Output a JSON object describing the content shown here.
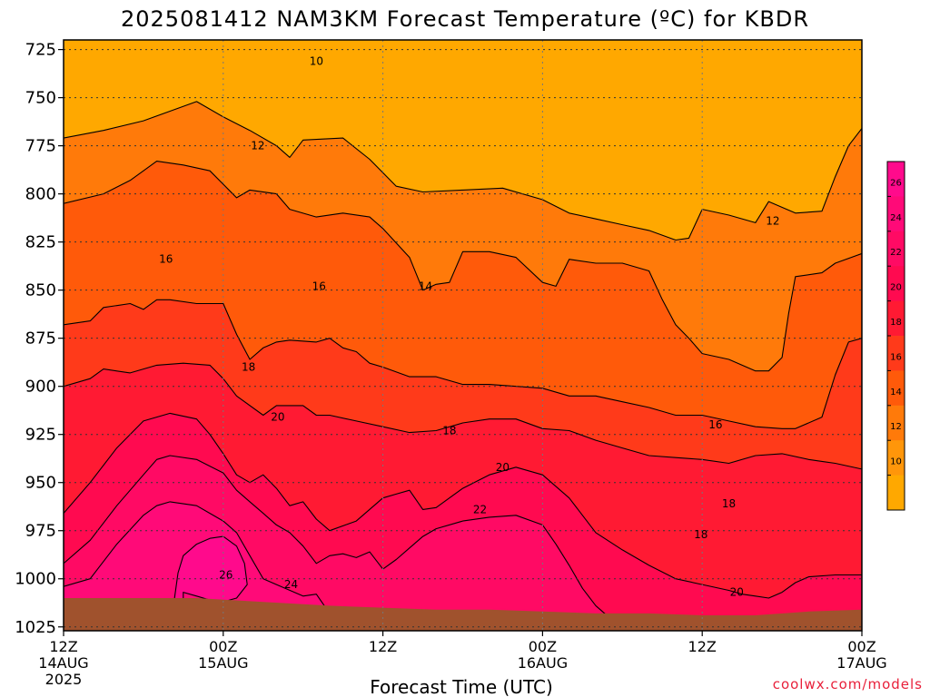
{
  "chart_data": {
    "type": "contour",
    "title": "2025081412 NAM3KM Forecast Temperature (ºC) for KBDR",
    "xlabel": "Forecast Time (UTC)",
    "ylabel": "",
    "credit": "coolwx.com/models",
    "x_ticks": [
      {
        "hour": 0,
        "line1": "12Z",
        "line2": "14AUG",
        "line3": "2025"
      },
      {
        "hour": 12,
        "line1": "00Z",
        "line2": "15AUG",
        "line3": ""
      },
      {
        "hour": 24,
        "line1": "12Z",
        "line2": "",
        "line3": ""
      },
      {
        "hour": 36,
        "line1": "00Z",
        "line2": "16AUG",
        "line3": ""
      },
      {
        "hour": 48,
        "line1": "12Z",
        "line2": "",
        "line3": ""
      },
      {
        "hour": 60,
        "line1": "00Z",
        "line2": "17AUG",
        "line3": ""
      }
    ],
    "xlim": [
      0,
      60
    ],
    "y_ticks": [
      "725",
      "750",
      "775",
      "800",
      "825",
      "850",
      "875",
      "900",
      "925",
      "950",
      "975",
      "1000",
      "1025"
    ],
    "ylim": [
      720,
      1027
    ],
    "y_inverted": true,
    "grid": true,
    "colorbar": {
      "ticks": [
        "26",
        "24",
        "22",
        "20",
        "18",
        "16",
        "14",
        "12",
        "10"
      ],
      "colors": [
        "#ff0a8c",
        "#ff0a78",
        "#ff0a64",
        "#ff0a50",
        "#ff1a33",
        "#ff3a1a",
        "#ff5a0a",
        "#ff7a0a",
        "#ff960a",
        "#ffa800"
      ]
    },
    "contour_labels": [
      {
        "hour": 19.0,
        "pressure": 731,
        "text": "10"
      },
      {
        "hour": 14.6,
        "pressure": 775,
        "text": "12"
      },
      {
        "hour": 53.3,
        "pressure": 814,
        "text": "12"
      },
      {
        "hour": 7.7,
        "pressure": 834,
        "text": "16"
      },
      {
        "hour": 19.2,
        "pressure": 848,
        "text": "16"
      },
      {
        "hour": 27.2,
        "pressure": 848,
        "text": "14"
      },
      {
        "hour": 13.9,
        "pressure": 890,
        "text": "18"
      },
      {
        "hour": 16.1,
        "pressure": 916,
        "text": "20"
      },
      {
        "hour": 29.0,
        "pressure": 923,
        "text": "18"
      },
      {
        "hour": 49.0,
        "pressure": 920,
        "text": "16"
      },
      {
        "hour": 33.0,
        "pressure": 942,
        "text": "20"
      },
      {
        "hour": 31.3,
        "pressure": 964,
        "text": "22"
      },
      {
        "hour": 50.0,
        "pressure": 961,
        "text": "18"
      },
      {
        "hour": 47.9,
        "pressure": 977,
        "text": "18"
      },
      {
        "hour": 12.2,
        "pressure": 998,
        "text": "26"
      },
      {
        "hour": 17.1,
        "pressure": 1003,
        "text": "24"
      },
      {
        "hour": 50.6,
        "pressure": 1007,
        "text": "20"
      }
    ],
    "bands": [
      {
        "level": "12",
        "color": "#ff7a0a",
        "upper": [
          [
            0,
            771
          ],
          [
            3,
            767
          ],
          [
            6,
            762
          ],
          [
            8,
            757
          ],
          [
            10,
            752
          ],
          [
            12,
            760
          ],
          [
            14,
            767
          ],
          [
            16,
            775
          ],
          [
            17,
            781
          ],
          [
            18,
            772
          ],
          [
            21,
            771
          ],
          [
            23,
            782
          ],
          [
            25,
            796
          ],
          [
            27,
            799
          ],
          [
            30,
            798
          ],
          [
            33,
            797
          ],
          [
            36,
            803
          ],
          [
            38,
            810
          ],
          [
            40,
            813
          ],
          [
            42,
            816
          ],
          [
            44,
            819
          ],
          [
            46,
            824
          ],
          [
            47,
            823
          ],
          [
            48,
            808
          ],
          [
            50,
            811
          ],
          [
            52,
            815
          ],
          [
            53,
            804
          ],
          [
            55,
            810
          ],
          [
            57,
            809
          ],
          [
            58,
            791
          ],
          [
            59,
            775
          ],
          [
            60,
            766
          ]
        ]
      },
      {
        "level": "14",
        "color": "#ff5a0a",
        "upper": [
          [
            0,
            805
          ],
          [
            3,
            800
          ],
          [
            5,
            793
          ],
          [
            7,
            783
          ],
          [
            9,
            785
          ],
          [
            11,
            788
          ],
          [
            12,
            795
          ],
          [
            13,
            802
          ],
          [
            14,
            798
          ],
          [
            16,
            800
          ],
          [
            17,
            808
          ],
          [
            19,
            812
          ],
          [
            21,
            810
          ],
          [
            23,
            812
          ],
          [
            24,
            818
          ],
          [
            26,
            833
          ],
          [
            27,
            850
          ],
          [
            28,
            847
          ],
          [
            29,
            846
          ],
          [
            30,
            830
          ],
          [
            32,
            830
          ],
          [
            34,
            833
          ],
          [
            36,
            846
          ],
          [
            37,
            848
          ],
          [
            38,
            834
          ],
          [
            40,
            836
          ],
          [
            42,
            836
          ],
          [
            44,
            840
          ],
          [
            45,
            855
          ],
          [
            46,
            868
          ],
          [
            47,
            875
          ],
          [
            48,
            883
          ],
          [
            50,
            886
          ],
          [
            52,
            892
          ],
          [
            53,
            892
          ],
          [
            54,
            885
          ],
          [
            54.5,
            862
          ],
          [
            55,
            843
          ],
          [
            57,
            841
          ],
          [
            58,
            836
          ],
          [
            60,
            831
          ]
        ]
      },
      {
        "level": "16",
        "color": "#ff3a1a",
        "upper": [
          [
            0,
            868
          ],
          [
            2,
            866
          ],
          [
            3,
            859
          ],
          [
            5,
            857
          ],
          [
            6,
            860
          ],
          [
            7,
            855
          ],
          [
            8,
            855
          ],
          [
            10,
            857
          ],
          [
            12,
            857
          ],
          [
            13,
            873
          ],
          [
            14,
            886
          ],
          [
            15,
            880
          ],
          [
            16,
            877
          ],
          [
            17,
            876
          ],
          [
            19,
            877
          ],
          [
            20,
            875
          ],
          [
            21,
            880
          ],
          [
            22,
            882
          ],
          [
            23,
            888
          ],
          [
            24,
            890
          ],
          [
            26,
            895
          ],
          [
            28,
            895
          ],
          [
            30,
            899
          ],
          [
            32,
            899
          ],
          [
            34,
            900
          ],
          [
            36,
            901
          ],
          [
            38,
            905
          ],
          [
            40,
            905
          ],
          [
            42,
            908
          ],
          [
            44,
            911
          ],
          [
            46,
            915
          ],
          [
            48,
            915
          ],
          [
            50,
            918
          ],
          [
            52,
            921
          ],
          [
            54,
            922
          ],
          [
            55,
            922
          ],
          [
            57,
            916
          ],
          [
            58,
            894
          ],
          [
            59,
            877
          ],
          [
            60,
            875
          ]
        ]
      },
      {
        "level": "18",
        "color": "#ff1a33",
        "upper": [
          [
            0,
            900
          ],
          [
            2,
            896
          ],
          [
            3,
            891
          ],
          [
            5,
            893
          ],
          [
            7,
            889
          ],
          [
            9,
            888
          ],
          [
            11,
            889
          ],
          [
            12,
            896
          ],
          [
            13,
            905
          ],
          [
            15,
            915
          ],
          [
            16,
            910
          ],
          [
            18,
            910
          ],
          [
            19,
            915
          ],
          [
            20,
            915
          ],
          [
            22,
            918
          ],
          [
            24,
            921
          ],
          [
            26,
            924
          ],
          [
            28,
            923
          ],
          [
            30,
            919
          ],
          [
            32,
            917
          ],
          [
            34,
            917
          ],
          [
            36,
            922
          ],
          [
            38,
            923
          ],
          [
            40,
            928
          ],
          [
            42,
            932
          ],
          [
            44,
            936
          ],
          [
            46,
            937
          ],
          [
            48,
            938
          ],
          [
            50,
            940
          ],
          [
            52,
            936
          ],
          [
            54,
            935
          ],
          [
            56,
            938
          ],
          [
            57,
            939
          ],
          [
            58,
            940
          ],
          [
            60,
            943
          ]
        ]
      },
      {
        "level": "20",
        "color": "#ff0a50",
        "upper": [
          [
            0,
            966
          ],
          [
            2,
            950
          ],
          [
            4,
            932
          ],
          [
            6,
            918
          ],
          [
            8,
            914
          ],
          [
            10,
            917
          ],
          [
            11,
            925
          ],
          [
            12,
            935
          ],
          [
            13,
            946
          ],
          [
            14,
            950
          ],
          [
            15,
            946
          ],
          [
            16,
            953
          ],
          [
            17,
            962
          ],
          [
            18,
            960
          ],
          [
            19,
            969
          ],
          [
            20,
            975
          ],
          [
            22,
            970
          ],
          [
            24,
            958
          ],
          [
            25,
            956
          ],
          [
            26,
            954
          ],
          [
            27,
            964
          ],
          [
            28,
            963
          ],
          [
            30,
            953
          ],
          [
            32,
            946
          ],
          [
            34,
            942
          ],
          [
            36,
            946
          ],
          [
            38,
            958
          ],
          [
            40,
            976
          ],
          [
            42,
            985
          ],
          [
            44,
            993
          ],
          [
            46,
            1000
          ],
          [
            48,
            1003
          ],
          [
            50,
            1006
          ],
          [
            51,
            1008
          ],
          [
            52,
            1009
          ],
          [
            53,
            1010
          ],
          [
            54,
            1007
          ],
          [
            55,
            1002
          ],
          [
            56,
            999
          ],
          [
            58,
            998
          ],
          [
            60,
            998
          ]
        ]
      },
      {
        "level": "22",
        "color": "#ff0a64",
        "upper": [
          [
            0,
            992
          ],
          [
            2,
            980
          ],
          [
            4,
            962
          ],
          [
            6,
            946
          ],
          [
            7,
            938
          ],
          [
            8,
            936
          ],
          [
            10,
            938
          ],
          [
            12,
            945
          ],
          [
            13,
            954
          ],
          [
            14,
            960
          ],
          [
            15,
            966
          ],
          [
            16,
            972
          ],
          [
            17,
            976
          ],
          [
            18,
            983
          ],
          [
            19,
            992
          ],
          [
            20,
            988
          ],
          [
            21,
            987
          ],
          [
            22,
            989
          ],
          [
            23,
            986
          ],
          [
            24,
            995
          ],
          [
            25,
            990
          ],
          [
            26,
            984
          ],
          [
            27,
            978
          ],
          [
            28,
            974
          ],
          [
            30,
            970
          ],
          [
            32,
            968
          ],
          [
            34,
            967
          ],
          [
            36,
            972
          ],
          [
            37,
            982
          ],
          [
            38,
            993
          ],
          [
            39,
            1005
          ],
          [
            40,
            1014
          ],
          [
            41,
            1020
          ],
          [
            42,
            1022
          ],
          [
            60,
            1022
          ]
        ]
      },
      {
        "level": "24",
        "color": "#ff0a78",
        "upper": [
          [
            0,
            1004
          ],
          [
            2,
            1000
          ],
          [
            4,
            982
          ],
          [
            6,
            967
          ],
          [
            7,
            962
          ],
          [
            8,
            960
          ],
          [
            10,
            962
          ],
          [
            11,
            966
          ],
          [
            12,
            970
          ],
          [
            13,
            976
          ],
          [
            14,
            988
          ],
          [
            15,
            1000
          ],
          [
            16,
            1003
          ],
          [
            18,
            1009
          ],
          [
            19,
            1008
          ],
          [
            20,
            1018
          ],
          [
            21,
            1020
          ],
          [
            60,
            1020
          ]
        ]
      },
      {
        "level": "26",
        "color": "#ff0a8c",
        "upper": [
          [
            0,
            1027
          ],
          [
            8,
            1027
          ],
          [
            8.6,
            997
          ],
          [
            9,
            988
          ],
          [
            10,
            982
          ],
          [
            11,
            979
          ],
          [
            12,
            978
          ],
          [
            13,
            983
          ],
          [
            13.6,
            992
          ],
          [
            13.8,
            1003
          ],
          [
            13,
            1010
          ],
          [
            12,
            1012
          ],
          [
            11,
            1011
          ],
          [
            10,
            1009
          ],
          [
            9,
            1007
          ],
          [
            9,
            1027
          ],
          [
            60,
            1027
          ]
        ]
      }
    ],
    "ground": {
      "color": "#a0522d",
      "upper": [
        [
          0,
          1010
        ],
        [
          10,
          1010
        ],
        [
          15,
          1012
        ],
        [
          20,
          1014
        ],
        [
          24,
          1015
        ],
        [
          28,
          1016
        ],
        [
          32,
          1016
        ],
        [
          36,
          1017
        ],
        [
          40,
          1018
        ],
        [
          44,
          1018
        ],
        [
          48,
          1019
        ],
        [
          52,
          1019
        ],
        [
          56,
          1017
        ],
        [
          60,
          1016
        ]
      ]
    }
  }
}
